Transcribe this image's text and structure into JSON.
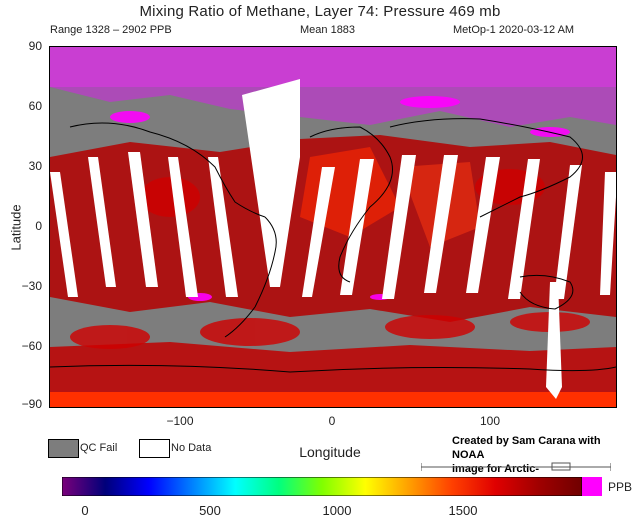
{
  "header": {
    "title": "Mixing Ratio of Methane, Layer 74: Pressure 469 mb",
    "range": "Range 1328 – 2902 PPB",
    "mean": "Mean 1883",
    "source": "MetOp-1 2020-03-12 AM"
  },
  "axes": {
    "ylabel": "Latitude",
    "xlabel": "Longitude",
    "yticks": [
      "90",
      "60",
      "30",
      "0",
      "−30",
      "−60",
      "−90"
    ],
    "xticks": [
      "−100",
      "0",
      "100"
    ]
  },
  "legend": {
    "qc_fail": "QC Fail",
    "no_data": "No Data",
    "qc_color": "#7d7d7d",
    "nodata_color": "#ffffff"
  },
  "credit": {
    "line1": "Created by Sam Carana with NOAA",
    "line2": "image for Arctic-news.blogspot.com"
  },
  "colorbar": {
    "ticks": [
      "0",
      "500",
      "1000",
      "1500"
    ],
    "unit": "PPB",
    "colors": [
      "#7a007a",
      "#00007a",
      "#0000ff",
      "#0080ff",
      "#00ffff",
      "#00ff80",
      "#80ff00",
      "#ffff00",
      "#ffa000",
      "#ff4000",
      "#e00000",
      "#a00000",
      "#700000"
    ],
    "over_color": "#ff00ff"
  },
  "map_colors": {
    "qc_fail": "#7d7d7d",
    "high_lat": "#e040e8",
    "methane_red": "#c80000",
    "methane_bright": "#ff3000",
    "coast": "#000000"
  }
}
